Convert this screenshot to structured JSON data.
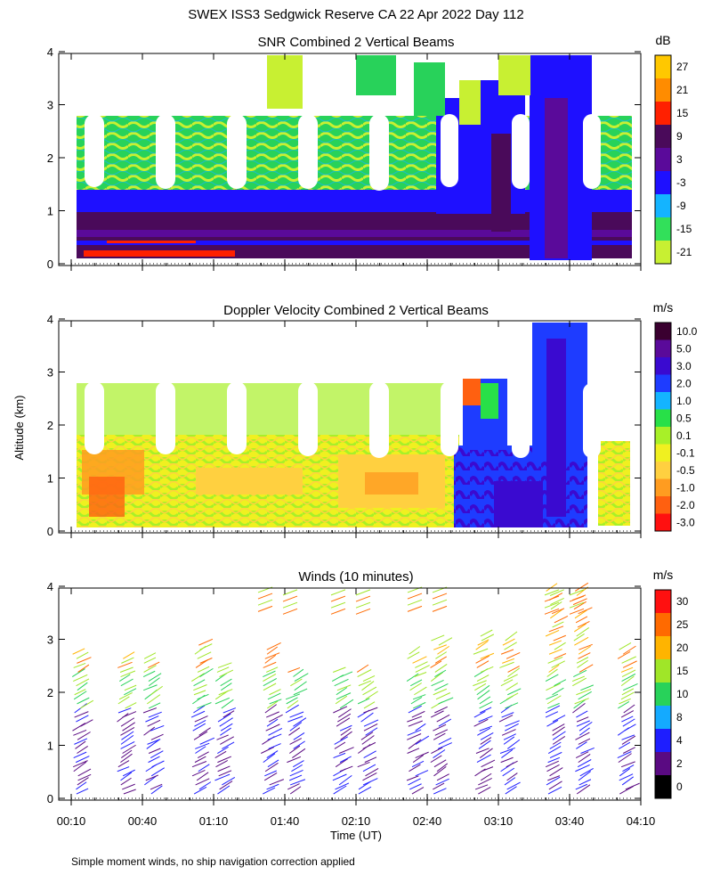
{
  "title": "SWEX ISS3 Sedgwick Reserve CA  22 Apr 2022 Day 112",
  "ylabel": "Altitude (km)",
  "xlabel": "Time (UT)",
  "footnote": "Simple moment winds, no ship navigation correction applied",
  "chart_data": [
    {
      "type": "heatmap",
      "title": "SNR Combined 2 Vertical Beams",
      "x_ticks": [
        "00:10",
        "00:40",
        "01:10",
        "01:40",
        "02:10",
        "02:40",
        "03:10",
        "03:40",
        "04:10"
      ],
      "y_ticks": [
        "0",
        "1",
        "2",
        "3",
        "4"
      ],
      "ylim": [
        0,
        4
      ],
      "colorbar": {
        "unit": "dB",
        "labels": [
          "27",
          "21",
          "15",
          "9",
          "3",
          "-3",
          "-9",
          "-15",
          "-21"
        ],
        "colors": [
          "#ffc800",
          "#ff8c00",
          "#ff2000",
          "#4a0a5a",
          "#5a0a9a",
          "#1e10ff",
          "#14b4ff",
          "#32e05a",
          "#c8f032"
        ]
      }
    },
    {
      "type": "heatmap",
      "title": "Doppler Velocity Combined 2 Vertical Beams",
      "x_ticks": [
        "00:10",
        "00:40",
        "01:10",
        "01:40",
        "02:10",
        "02:40",
        "03:10",
        "03:40",
        "04:10"
      ],
      "y_ticks": [
        "0",
        "1",
        "2",
        "3",
        "4"
      ],
      "ylim": [
        0,
        4
      ],
      "colorbar": {
        "unit": "m/s",
        "labels": [
          "10.0",
          "5.0",
          "3.0",
          "2.0",
          "1.0",
          "0.5",
          "0.1",
          "-0.1",
          "-0.5",
          "-1.0",
          "-2.0",
          "-3.0"
        ],
        "colors": [
          "#3a0030",
          "#5a0a9a",
          "#3a0ad0",
          "#1e3cff",
          "#14b4ff",
          "#28e048",
          "#a8f028",
          "#f0f020",
          "#ffd040",
          "#ff9c20",
          "#ff6010",
          "#ff1010"
        ]
      }
    },
    {
      "type": "scatter",
      "title": "Winds (10 minutes)",
      "x_ticks": [
        "00:10",
        "00:40",
        "01:10",
        "01:40",
        "02:10",
        "02:40",
        "03:10",
        "03:40",
        "04:10"
      ],
      "y_ticks": [
        "0",
        "1",
        "2",
        "3",
        "4"
      ],
      "ylim": [
        0,
        4
      ],
      "colorbar": {
        "unit": "m/s",
        "labels": [
          "30",
          "25",
          "20",
          "15",
          "10",
          "8",
          "4",
          "2",
          "0"
        ],
        "colors": [
          "#ff1010",
          "#ff6a00",
          "#ffb400",
          "#a0e628",
          "#28d25a",
          "#14aaff",
          "#1e1eff",
          "#5a0a82",
          "#000000"
        ]
      }
    }
  ]
}
